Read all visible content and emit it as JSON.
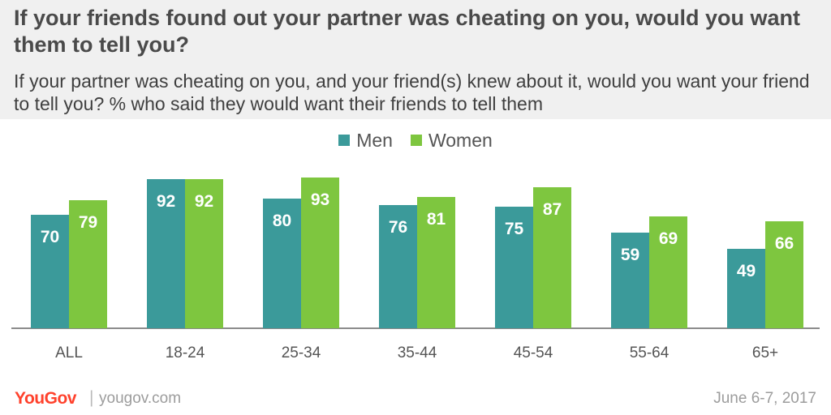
{
  "header": {
    "title": "If your friends found out your partner was cheating on you, would you want them to tell you?",
    "subtitle": "If your partner was cheating on you, and your friend(s) knew about it, would you want your friend to tell you? % who said they would want their friends to tell them"
  },
  "legend": {
    "men": "Men",
    "women": "Women"
  },
  "colors": {
    "men": "#3b9a9a",
    "women": "#7ec63f",
    "header_bg": "#f0f0f0",
    "brand": "#ff412c"
  },
  "chart_data": {
    "type": "bar",
    "categories": [
      "ALL",
      "18-24",
      "25-34",
      "35-44",
      "45-54",
      "55-64",
      "65+"
    ],
    "series": [
      {
        "name": "Men",
        "values": [
          70,
          92,
          80,
          76,
          75,
          59,
          49
        ]
      },
      {
        "name": "Women",
        "values": [
          79,
          92,
          93,
          81,
          87,
          69,
          66
        ]
      }
    ],
    "title": "If your friends found out your partner was cheating on you, would you want them to tell you?",
    "xlabel": "",
    "ylabel": "",
    "ylim": [
      0,
      100
    ],
    "grid": false,
    "legend": "top-center"
  },
  "footer": {
    "logo": "YouGov",
    "separator": "|",
    "url": "yougov.com",
    "date": "June 6-7, 2017"
  }
}
